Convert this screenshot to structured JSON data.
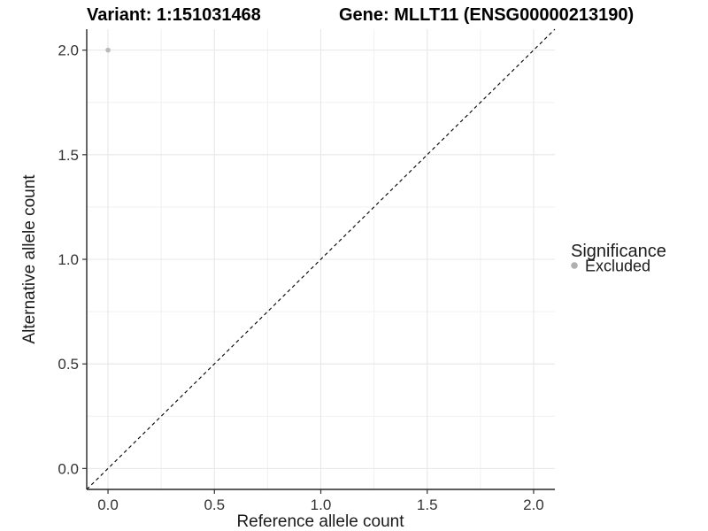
{
  "chart_data": {
    "type": "scatter",
    "title_left": "Variant: 1:151031468",
    "title_right": "Gene: MLLT11 (ENSG00000213190)",
    "xlabel": "Reference allele count",
    "ylabel": "Alternative allele count",
    "xlim": [
      0,
      2
    ],
    "ylim": [
      0,
      2
    ],
    "expansion": 0.05,
    "xticks": [
      0.0,
      0.5,
      1.0,
      1.5,
      2.0
    ],
    "yticks": [
      0.0,
      0.5,
      1.0,
      1.5,
      2.0
    ],
    "minor_xticks": [
      0.25,
      0.75,
      1.25,
      1.75
    ],
    "minor_yticks": [
      0.25,
      0.75,
      1.25,
      1.75
    ],
    "tick_decimals": 1,
    "grid": true,
    "identity_line": {
      "style": "dashed",
      "color": "#000000"
    },
    "points": [
      {
        "x": 0.0,
        "y": 2.0,
        "series": "Excluded"
      }
    ],
    "series": [
      {
        "name": "Excluded",
        "color": "#b9b9b9"
      }
    ],
    "legend": {
      "title": "Significance",
      "position": "right",
      "entries": [
        {
          "label": "Excluded",
          "color": "#b0b0b0"
        }
      ]
    },
    "colors": {
      "grid_major": "#e7e7e7",
      "grid_minor": "#f1f1f1",
      "axis_line": "#262626",
      "tick_mark": "#333333",
      "background": "#ffffff"
    }
  }
}
